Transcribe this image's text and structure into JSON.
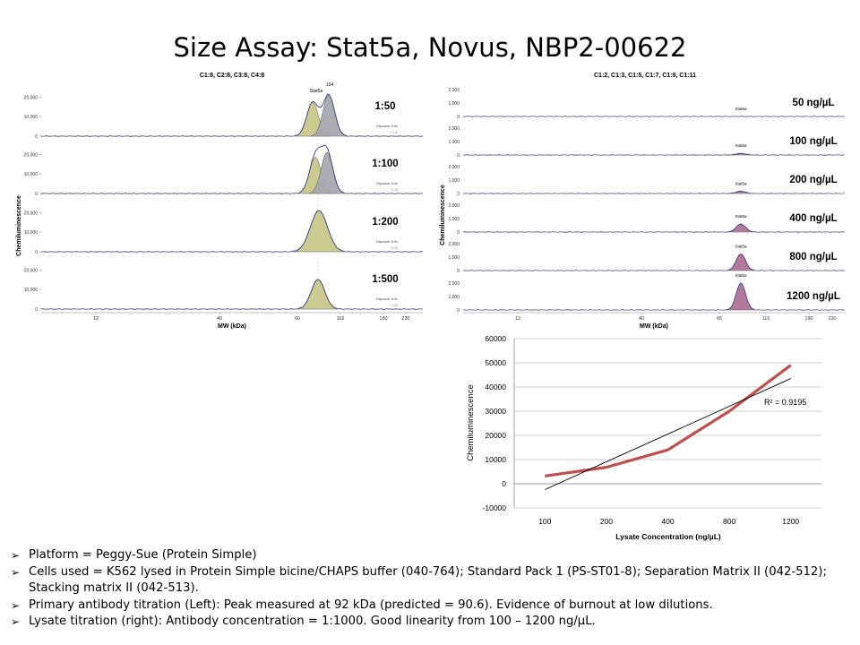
{
  "title": "Size Assay: Stat5a, Novus, NBP2-00622",
  "chart_data": [
    {
      "type": "line",
      "panel": "left",
      "title": "C1:8, C2:8, C3:8, C4:8",
      "xlabel": "MW (kDa)",
      "ylabel": "Chemiluminescence",
      "xticks": [
        "12",
        "40",
        "66",
        "116",
        "180",
        "230"
      ],
      "peak_labels": [
        "Stat5a",
        "104"
      ],
      "exposure_label": "Exposure: 5.0s",
      "traces": [
        {
          "label": "1:50",
          "capillary": "C1:8",
          "yticks": [
            "20,000",
            "10,000",
            "0"
          ]
        },
        {
          "label": "1:100",
          "capillary": "C2:8",
          "yticks": [
            "20,000",
            "10,000",
            "0"
          ]
        },
        {
          "label": "1:200",
          "capillary": "C3:8",
          "yticks": [
            "20,000",
            "10,000",
            "0"
          ]
        },
        {
          "label": "1:500",
          "capillary": "C4:8",
          "yticks": [
            "20,000",
            "10,000",
            "0"
          ]
        }
      ],
      "colors": {
        "stat5a_fill": "#c8c88a",
        "peak104_fill": "#a8a8b0",
        "trace": "#3a3a8c"
      }
    },
    {
      "type": "line",
      "panel": "right",
      "title": "C1:2, C1:3, C1:5, C1:7, C1:9, C1:11",
      "xlabel": "MW (kDa)",
      "ylabel": "Chemiluminescence",
      "xticks": [
        "12",
        "40",
        "66",
        "116",
        "180",
        "230"
      ],
      "peak_label": "Stat5a",
      "traces": [
        {
          "label": "50 ng/µL",
          "yticks": [
            "2,000",
            "1,000",
            "0"
          ],
          "rel_height": 0.0
        },
        {
          "label": "100 ng/µL",
          "yticks": [
            "2,000",
            "1,000",
            "0"
          ],
          "rel_height": 0.06
        },
        {
          "label": "200 ng/µL",
          "yticks": [
            "2,000",
            "1,000",
            "0"
          ],
          "rel_height": 0.09
        },
        {
          "label": "400 ng/µL",
          "yticks": [
            "2,000",
            "1,000",
            "0"
          ],
          "rel_height": 0.3
        },
        {
          "label": "800 ng/µL",
          "yticks": [
            "2,000",
            "1,000",
            "0"
          ],
          "rel_height": 0.62
        },
        {
          "label": "1200 ng/µL",
          "yticks": [
            "2,000",
            "1,000",
            "0"
          ],
          "rel_height": 1.0
        }
      ],
      "colors": {
        "peak_fill": "#b3799a",
        "trace": "#3a3a8c"
      }
    },
    {
      "type": "line",
      "panel": "linearity",
      "title": "",
      "xlabel": "Lysate Concentration (ng/µL)",
      "ylabel": "Chemiluminescence",
      "categories": [
        "100",
        "200",
        "400",
        "800",
        "1200"
      ],
      "series": [
        {
          "values": [
            3200,
            6800,
            14000,
            30000,
            49000
          ],
          "color": "#c0504d"
        }
      ],
      "trendline": {
        "start": -2400,
        "end": 43500,
        "color": "#000000",
        "label": "R² = 0.9195"
      },
      "yticks": [
        "60000",
        "50000",
        "40000",
        "30000",
        "20000",
        "10000",
        "0",
        "-10000"
      ],
      "ylim": [
        -10000,
        60000
      ],
      "grid": true,
      "legend": "none"
    }
  ],
  "notes": [
    "Platform = Peggy-Sue (Protein Simple)",
    "Cells used = K562 lysed in Protein Simple bicine/CHAPS buffer (040-764); Standard Pack 1 (PS-ST01-8); Separation Matrix II (042-512); Stacking matrix II (042-513).",
    "Primary antibody titration (Left):  Peak measured at 92 kDa (predicted = 90.6). Evidence of burnout at low dilutions.",
    "Lysate titration (right): Antibody concentration = 1:1000. Good linearity from 100 – 1200 ng/µL."
  ]
}
